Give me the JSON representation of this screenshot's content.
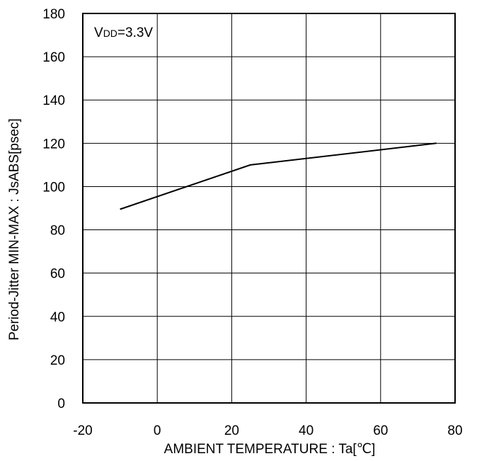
{
  "chart_data": {
    "type": "line",
    "title": "",
    "xlabel": "AMBIENT TEMPERATURE : Ta[℃]",
    "ylabel": "Period-Jitter MIN-MAX : JsABS[psec]",
    "xlim": [
      -20,
      80
    ],
    "ylim": [
      0,
      180
    ],
    "xticks": [
      -20,
      0,
      20,
      40,
      60,
      80
    ],
    "yticks": [
      0,
      20,
      40,
      60,
      80,
      100,
      120,
      140,
      160,
      180
    ],
    "grid": true,
    "annotation": {
      "main": "V",
      "sub": "DD",
      "rest": "=3.3V"
    },
    "series": [
      {
        "x": [
          -10,
          25,
          75
        ],
        "y": [
          89.5,
          110,
          120
        ]
      }
    ]
  }
}
